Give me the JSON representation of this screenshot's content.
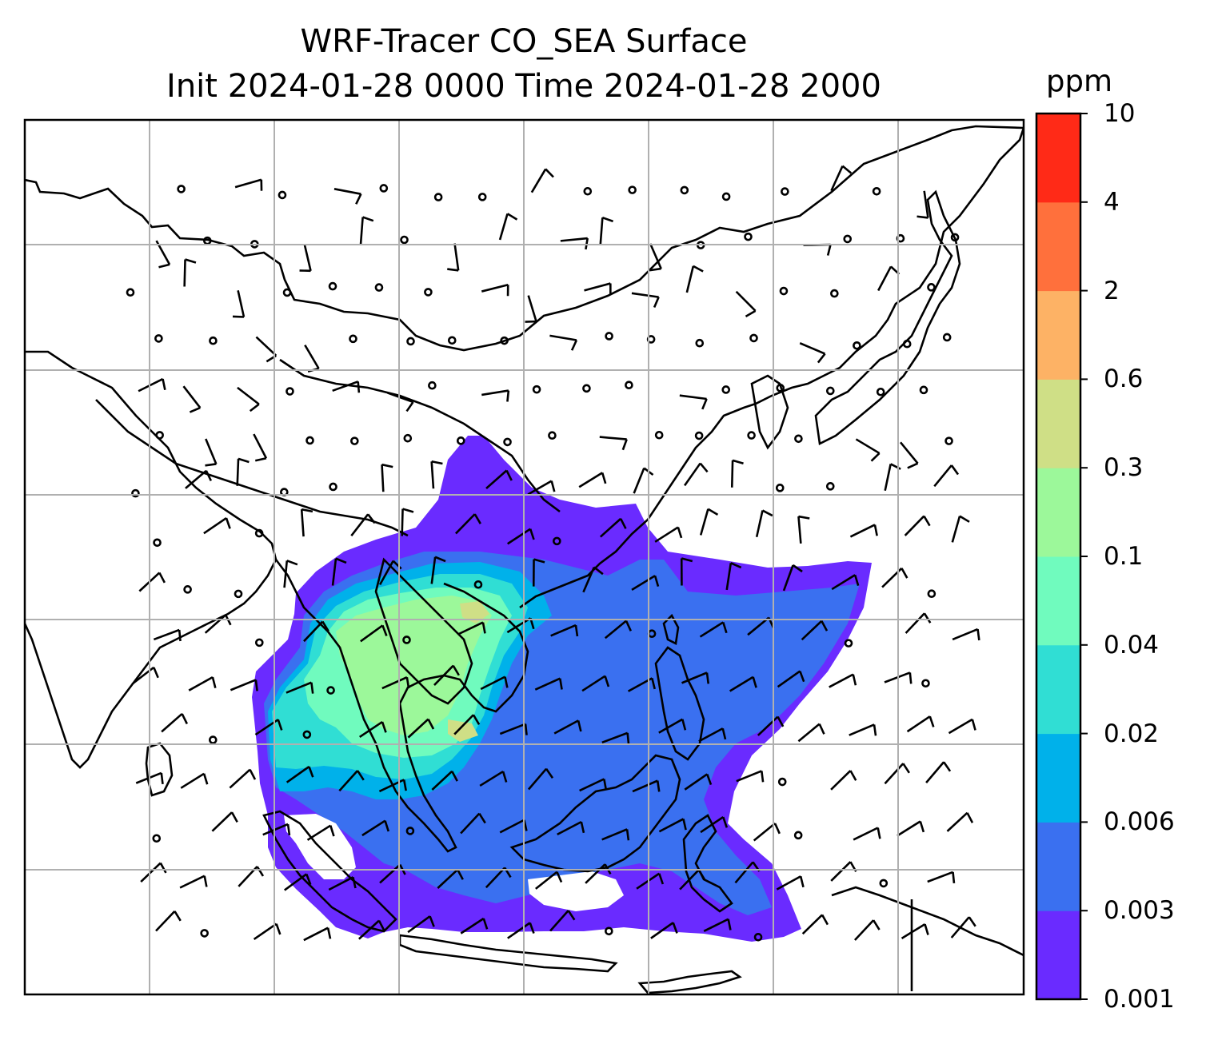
{
  "title": {
    "line1": "WRF-Tracer CO_SEA Surface",
    "line2": "Init 2024-01-28 0000 Time 2024-01-28 2000"
  },
  "colorbar": {
    "units": "ppm",
    "ticks": [
      "0.001",
      "0.003",
      "0.006",
      "0.02",
      "0.04",
      "0.1",
      "0.3",
      "0.6",
      "2",
      "4",
      "10"
    ],
    "colors": [
      "#6a2bff",
      "#3a70f0",
      "#00b1ea",
      "#30ded4",
      "#70fbbe",
      "#9cf89a",
      "#cfdf86",
      "#fdb265",
      "#ff703c",
      "#ff2a17"
    ]
  },
  "map": {
    "region": "Southeast Asia",
    "tracer": "CO_SEA",
    "level": "Surface"
  }
}
